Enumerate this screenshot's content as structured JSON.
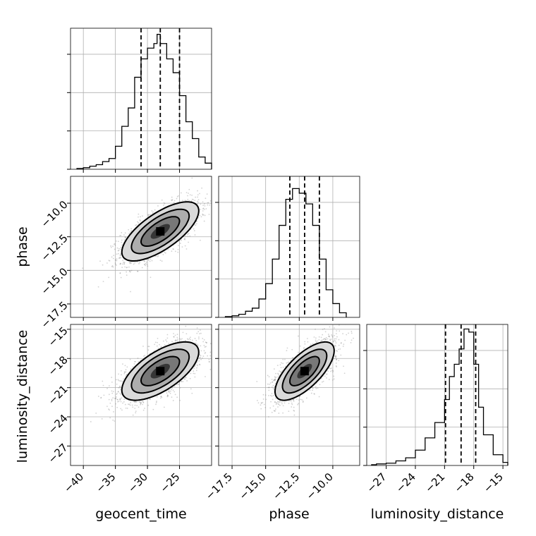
{
  "chart_data": {
    "type": "corner",
    "parameters": [
      {
        "name": "geocent_time",
        "label": "geocent_time",
        "range": [
          -42,
          -20
        ],
        "ticks": [
          -40,
          -35,
          -30,
          -25
        ],
        "tick_labels": [
          "−40",
          "−35",
          "−30",
          "−25"
        ],
        "mean": -28,
        "sd": 3,
        "quantiles": [
          -31,
          -28,
          -25
        ],
        "histogram": {
          "edges": [
            -41,
            -40,
            -39,
            -38,
            -37,
            -36,
            -35,
            -34,
            -33,
            -32,
            -31,
            -30,
            -29,
            -28.5,
            -28,
            -27,
            -26,
            -25,
            -24,
            -23,
            -22,
            -21,
            -20
          ],
          "counts": [
            0.5,
            1,
            2,
            3,
            5,
            7,
            15,
            28,
            40,
            60,
            72,
            79,
            82,
            88,
            82,
            72,
            63,
            48,
            31,
            20,
            8,
            4
          ]
        }
      },
      {
        "name": "phase",
        "label": "phase",
        "range": [
          -18.5,
          -8.0
        ],
        "ticks": [
          -17.5,
          -15.0,
          -12.5,
          -10.0
        ],
        "tick_labels": [
          "−17.5",
          "−15.0",
          "−12.5",
          "−10.0"
        ],
        "mean": -12.1,
        "sd": 1.1,
        "quantiles": [
          -13.2,
          -12.1,
          -11.0
        ],
        "histogram": {
          "edges": [
            -18,
            -17.5,
            -17,
            -16.5,
            -16,
            -15.5,
            -15,
            -14.5,
            -14,
            -13.5,
            -13,
            -12.5,
            -12,
            -11.5,
            -11,
            -10.5,
            -10,
            -9.5,
            -9
          ],
          "counts": [
            0.5,
            1,
            2,
            4,
            6,
            12,
            22,
            38,
            60,
            77,
            84,
            81,
            74,
            60,
            38,
            18,
            9,
            3
          ]
        }
      },
      {
        "name": "luminosity_distance",
        "label": "luminosity_distance",
        "range": [
          -29,
          -14.5
        ],
        "ticks": [
          -27,
          -24,
          -21,
          -18,
          -15
        ],
        "tick_labels": [
          "−27",
          "−24",
          "−21",
          "−18",
          "−15"
        ],
        "mean": -19.3,
        "sd": 1.5,
        "quantiles": [
          -20.9,
          -19.3,
          -17.8
        ],
        "histogram": {
          "edges": [
            -28.5,
            -28,
            -27,
            -26,
            -25,
            -24,
            -23,
            -22,
            -21,
            -20.5,
            -20,
            -19.5,
            -19,
            -18.5,
            -18,
            -17.5,
            -17,
            -16,
            -15,
            -14.5
          ],
          "counts": [
            0.5,
            1,
            1.5,
            3,
            5,
            10,
            18,
            28,
            43,
            58,
            66,
            76,
            89,
            87,
            66,
            38,
            20,
            7,
            2
          ]
        }
      }
    ],
    "correlations": [
      {
        "pair": [
          "geocent_time",
          "phase"
        ],
        "rho": 0.7
      },
      {
        "pair": [
          "geocent_time",
          "luminosity_distance"
        ],
        "rho": 0.65
      },
      {
        "pair": [
          "phase",
          "luminosity_distance"
        ],
        "rho": 0.7
      }
    ],
    "contour_levels_sigma": [
      0.5,
      1.0,
      1.5,
      2.0
    ],
    "grid": true,
    "hist_ylim": [
      0,
      92
    ]
  }
}
